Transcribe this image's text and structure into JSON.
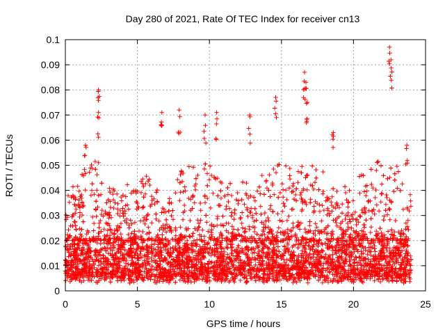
{
  "chart_data": {
    "type": "scatter",
    "title": "Day 280 of 2021, Rate Of TEC Index for receiver cn13",
    "xlabel": "GPS time / hours",
    "ylabel": "ROTI / TECUs",
    "xlim": [
      0,
      25
    ],
    "ylim": [
      0,
      0.1
    ],
    "x_ticks": [
      "0",
      "5",
      "10",
      "15",
      "20",
      "25"
    ],
    "y_ticks": [
      "0",
      "0.01",
      "0.02",
      "0.03",
      "0.04",
      "0.05",
      "0.06",
      "0.07",
      "0.08",
      "0.09",
      "0.1"
    ],
    "grid": true,
    "marker": "plus",
    "series_color": "#ff0000",
    "x_end": 24.0,
    "notable_points": [
      {
        "x": 2.3,
        "y": 0.08
      },
      {
        "x": 2.3,
        "y": 0.071
      },
      {
        "x": 6.7,
        "y": 0.071
      },
      {
        "x": 7.9,
        "y": 0.072
      },
      {
        "x": 9.7,
        "y": 0.07
      },
      {
        "x": 10.5,
        "y": 0.071
      },
      {
        "x": 12.8,
        "y": 0.07
      },
      {
        "x": 14.6,
        "y": 0.077
      },
      {
        "x": 16.6,
        "y": 0.087
      },
      {
        "x": 16.7,
        "y": 0.083
      },
      {
        "x": 16.8,
        "y": 0.075
      },
      {
        "x": 18.6,
        "y": 0.063
      },
      {
        "x": 22.5,
        "y": 0.097
      },
      {
        "x": 22.6,
        "y": 0.092
      },
      {
        "x": 1.4,
        "y": 0.058
      },
      {
        "x": 23.7,
        "y": 0.058
      }
    ],
    "baseline_band": [
      0.005,
      0.02
    ],
    "activity_profile": [
      {
        "x": 0,
        "peak": 0.04
      },
      {
        "x": 1,
        "peak": 0.045
      },
      {
        "x": 2,
        "peak": 0.055
      },
      {
        "x": 3,
        "peak": 0.042
      },
      {
        "x": 4,
        "peak": 0.04
      },
      {
        "x": 5,
        "peak": 0.05
      },
      {
        "x": 6,
        "peak": 0.045
      },
      {
        "x": 7,
        "peak": 0.035
      },
      {
        "x": 8,
        "peak": 0.048
      },
      {
        "x": 9,
        "peak": 0.052
      },
      {
        "x": 10,
        "peak": 0.05
      },
      {
        "x": 11,
        "peak": 0.045
      },
      {
        "x": 12,
        "peak": 0.048
      },
      {
        "x": 13,
        "peak": 0.045
      },
      {
        "x": 14,
        "peak": 0.05
      },
      {
        "x": 15,
        "peak": 0.052
      },
      {
        "x": 16,
        "peak": 0.05
      },
      {
        "x": 17,
        "peak": 0.05
      },
      {
        "x": 18,
        "peak": 0.048
      },
      {
        "x": 19,
        "peak": 0.04
      },
      {
        "x": 20,
        "peak": 0.045
      },
      {
        "x": 21,
        "peak": 0.048
      },
      {
        "x": 22,
        "peak": 0.055
      },
      {
        "x": 23,
        "peak": 0.05
      },
      {
        "x": 24,
        "peak": 0.04
      }
    ]
  }
}
